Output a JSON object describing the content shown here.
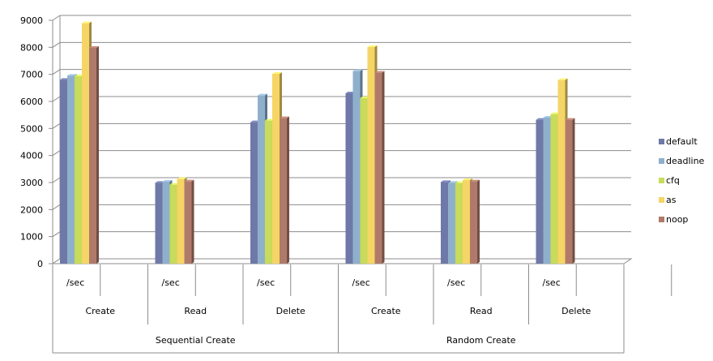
{
  "chart_data": {
    "type": "bar",
    "title": "",
    "xlabel": "",
    "ylabel": "",
    "ylim": [
      0,
      9000
    ],
    "yticks": [
      0,
      1000,
      2000,
      3000,
      4000,
      5000,
      6000,
      7000,
      8000,
      9000
    ],
    "grid": true,
    "legend_position": "right",
    "categories": [
      {
        "unit": "/sec",
        "operation": "Create",
        "group": "Sequential Create"
      },
      {
        "unit": "/sec",
        "operation": "Read",
        "group": "Sequential Create"
      },
      {
        "unit": "/sec",
        "operation": "Delete",
        "group": "Sequential Create"
      },
      {
        "unit": "/sec",
        "operation": "Create",
        "group": "Random Create"
      },
      {
        "unit": "/sec",
        "operation": "Read",
        "group": "Random Create"
      },
      {
        "unit": "/sec",
        "operation": "Delete",
        "group": "Random Create"
      }
    ],
    "groups": [
      {
        "label": "Sequential Create",
        "span": 3
      },
      {
        "label": "Random Create",
        "span": 3
      }
    ],
    "series": [
      {
        "name": "default",
        "color": "#6f79a8",
        "values": [
          6800,
          2990,
          5230,
          6300,
          3020,
          5320
        ]
      },
      {
        "name": "deadline",
        "color": "#8fb0cc",
        "values": [
          6950,
          3030,
          6220,
          7120,
          2990,
          5400
        ]
      },
      {
        "name": "cfq",
        "color": "#c8db5a",
        "values": [
          6930,
          2920,
          5290,
          6120,
          2980,
          5530
        ]
      },
      {
        "name": "as",
        "color": "#f5d565",
        "values": [
          8890,
          3130,
          7020,
          8010,
          3090,
          6790
        ]
      },
      {
        "name": "noop",
        "color": "#b07a6a",
        "values": [
          7980,
          3040,
          5380,
          7060,
          3040,
          5320
        ]
      }
    ]
  }
}
